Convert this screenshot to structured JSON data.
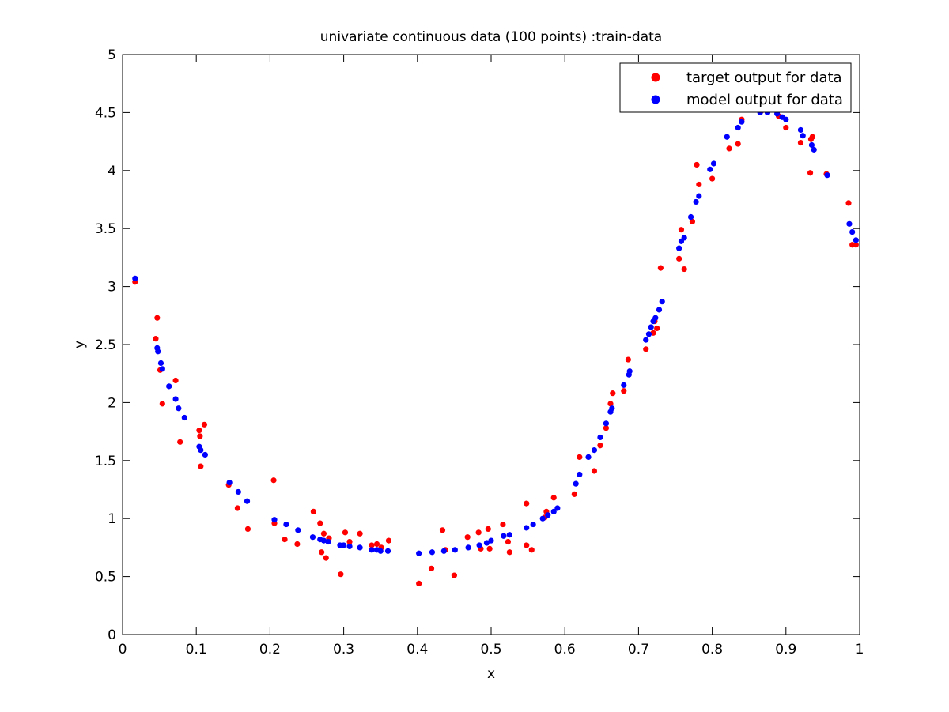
{
  "chart_data": {
    "type": "scatter",
    "title": "univariate continuous data (100 points) :train-data",
    "xlabel": "x",
    "ylabel": "y",
    "xlim": [
      0,
      1
    ],
    "ylim": [
      0,
      5
    ],
    "xticks": [
      "0",
      "0.1",
      "0.2",
      "0.3",
      "0.4",
      "0.5",
      "0.6",
      "0.7",
      "0.8",
      "0.9",
      "1"
    ],
    "yticks": [
      "0",
      "0.5",
      "1",
      "1.5",
      "2",
      "2.5",
      "3",
      "3.5",
      "4",
      "4.5",
      "5"
    ],
    "grid": false,
    "legend_position": "top-right",
    "series": [
      {
        "name": "target output for data",
        "color": "#ff0000",
        "points": [
          [
            0.017,
            3.04
          ],
          [
            0.045,
            2.55
          ],
          [
            0.047,
            2.73
          ],
          [
            0.051,
            2.28
          ],
          [
            0.054,
            1.99
          ],
          [
            0.072,
            2.19
          ],
          [
            0.078,
            1.66
          ],
          [
            0.104,
            1.76
          ],
          [
            0.105,
            1.71
          ],
          [
            0.106,
            1.45
          ],
          [
            0.111,
            1.81
          ],
          [
            0.144,
            1.29
          ],
          [
            0.156,
            1.09
          ],
          [
            0.17,
            0.91
          ],
          [
            0.205,
            1.33
          ],
          [
            0.206,
            0.96
          ],
          [
            0.22,
            0.82
          ],
          [
            0.237,
            0.78
          ],
          [
            0.259,
            1.06
          ],
          [
            0.268,
            0.96
          ],
          [
            0.27,
            0.71
          ],
          [
            0.273,
            0.87
          ],
          [
            0.276,
            0.66
          ],
          [
            0.28,
            0.83
          ],
          [
            0.296,
            0.52
          ],
          [
            0.302,
            0.88
          ],
          [
            0.308,
            0.8
          ],
          [
            0.322,
            0.87
          ],
          [
            0.338,
            0.77
          ],
          [
            0.345,
            0.78
          ],
          [
            0.351,
            0.75
          ],
          [
            0.361,
            0.81
          ],
          [
            0.402,
            0.44
          ],
          [
            0.419,
            0.57
          ],
          [
            0.434,
            0.9
          ],
          [
            0.438,
            0.73
          ],
          [
            0.45,
            0.51
          ],
          [
            0.468,
            0.84
          ],
          [
            0.483,
            0.88
          ],
          [
            0.486,
            0.74
          ],
          [
            0.496,
            0.91
          ],
          [
            0.498,
            0.74
          ],
          [
            0.516,
            0.95
          ],
          [
            0.523,
            0.8
          ],
          [
            0.525,
            0.71
          ],
          [
            0.548,
            0.77
          ],
          [
            0.548,
            1.13
          ],
          [
            0.555,
            0.73
          ],
          [
            0.573,
            1.01
          ],
          [
            0.575,
            1.06
          ],
          [
            0.585,
            1.18
          ],
          [
            0.613,
            1.21
          ],
          [
            0.62,
            1.53
          ],
          [
            0.64,
            1.41
          ],
          [
            0.648,
            1.63
          ],
          [
            0.656,
            1.78
          ],
          [
            0.662,
            1.99
          ],
          [
            0.665,
            2.08
          ],
          [
            0.68,
            2.1
          ],
          [
            0.686,
            2.37
          ],
          [
            0.71,
            2.46
          ],
          [
            0.72,
            2.6
          ],
          [
            0.722,
            2.7
          ],
          [
            0.725,
            2.64
          ],
          [
            0.73,
            3.16
          ],
          [
            0.755,
            3.24
          ],
          [
            0.758,
            3.49
          ],
          [
            0.762,
            3.15
          ],
          [
            0.773,
            3.56
          ],
          [
            0.779,
            4.05
          ],
          [
            0.782,
            3.88
          ],
          [
            0.8,
            3.93
          ],
          [
            0.823,
            4.19
          ],
          [
            0.835,
            4.23
          ],
          [
            0.84,
            4.44
          ],
          [
            0.868,
            4.52
          ],
          [
            0.885,
            4.53
          ],
          [
            0.89,
            4.47
          ],
          [
            0.9,
            4.37
          ],
          [
            0.92,
            4.24
          ],
          [
            0.933,
            3.98
          ],
          [
            0.934,
            4.27
          ],
          [
            0.936,
            4.29
          ],
          [
            0.955,
            3.97
          ],
          [
            0.985,
            3.72
          ],
          [
            0.99,
            3.36
          ],
          [
            0.995,
            3.36
          ]
        ]
      },
      {
        "name": "model output for data",
        "color": "#0000ff",
        "points": [
          [
            0.017,
            3.07
          ],
          [
            0.047,
            2.47
          ],
          [
            0.048,
            2.44
          ],
          [
            0.052,
            2.34
          ],
          [
            0.054,
            2.29
          ],
          [
            0.063,
            2.14
          ],
          [
            0.072,
            2.03
          ],
          [
            0.076,
            1.95
          ],
          [
            0.084,
            1.87
          ],
          [
            0.104,
            1.62
          ],
          [
            0.106,
            1.59
          ],
          [
            0.112,
            1.55
          ],
          [
            0.145,
            1.31
          ],
          [
            0.157,
            1.23
          ],
          [
            0.169,
            1.15
          ],
          [
            0.206,
            0.99
          ],
          [
            0.222,
            0.95
          ],
          [
            0.238,
            0.9
          ],
          [
            0.258,
            0.84
          ],
          [
            0.268,
            0.82
          ],
          [
            0.273,
            0.81
          ],
          [
            0.279,
            0.8
          ],
          [
            0.295,
            0.77
          ],
          [
            0.3,
            0.77
          ],
          [
            0.308,
            0.76
          ],
          [
            0.322,
            0.75
          ],
          [
            0.338,
            0.73
          ],
          [
            0.345,
            0.73
          ],
          [
            0.35,
            0.72
          ],
          [
            0.36,
            0.72
          ],
          [
            0.402,
            0.7
          ],
          [
            0.42,
            0.71
          ],
          [
            0.436,
            0.72
          ],
          [
            0.451,
            0.73
          ],
          [
            0.469,
            0.75
          ],
          [
            0.484,
            0.77
          ],
          [
            0.494,
            0.79
          ],
          [
            0.5,
            0.81
          ],
          [
            0.517,
            0.85
          ],
          [
            0.525,
            0.86
          ],
          [
            0.548,
            0.92
          ],
          [
            0.557,
            0.95
          ],
          [
            0.57,
            1.0
          ],
          [
            0.577,
            1.03
          ],
          [
            0.585,
            1.06
          ],
          [
            0.59,
            1.09
          ],
          [
            0.615,
            1.3
          ],
          [
            0.62,
            1.38
          ],
          [
            0.632,
            1.53
          ],
          [
            0.64,
            1.59
          ],
          [
            0.648,
            1.7
          ],
          [
            0.656,
            1.82
          ],
          [
            0.662,
            1.92
          ],
          [
            0.664,
            1.95
          ],
          [
            0.68,
            2.15
          ],
          [
            0.687,
            2.24
          ],
          [
            0.688,
            2.27
          ],
          [
            0.71,
            2.54
          ],
          [
            0.714,
            2.59
          ],
          [
            0.717,
            2.65
          ],
          [
            0.72,
            2.7
          ],
          [
            0.723,
            2.73
          ],
          [
            0.728,
            2.8
          ],
          [
            0.732,
            2.87
          ],
          [
            0.755,
            3.33
          ],
          [
            0.758,
            3.39
          ],
          [
            0.762,
            3.42
          ],
          [
            0.771,
            3.6
          ],
          [
            0.778,
            3.73
          ],
          [
            0.782,
            3.78
          ],
          [
            0.797,
            4.01
          ],
          [
            0.802,
            4.06
          ],
          [
            0.82,
            4.29
          ],
          [
            0.835,
            4.37
          ],
          [
            0.84,
            4.42
          ],
          [
            0.865,
            4.5
          ],
          [
            0.875,
            4.5
          ],
          [
            0.888,
            4.49
          ],
          [
            0.895,
            4.46
          ],
          [
            0.9,
            4.44
          ],
          [
            0.92,
            4.35
          ],
          [
            0.923,
            4.3
          ],
          [
            0.935,
            4.22
          ],
          [
            0.938,
            4.18
          ],
          [
            0.956,
            3.96
          ],
          [
            0.986,
            3.54
          ],
          [
            0.99,
            3.47
          ],
          [
            0.995,
            3.4
          ]
        ]
      }
    ]
  }
}
